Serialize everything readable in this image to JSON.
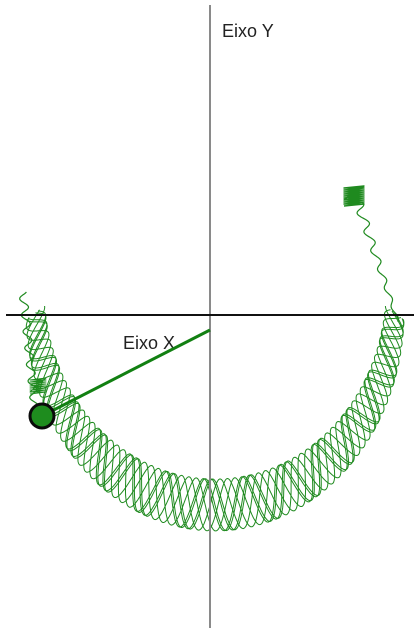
{
  "labels": {
    "y_axis": "Eixo Y",
    "x_axis": "Eixo X"
  },
  "colors": {
    "axis_vertical": "#8a8a8a",
    "axis_horizontal": "#111111",
    "trace": "#1f8a1f",
    "rod": "#128012",
    "bob_fill": "#1e8c1e",
    "bob_stroke": "#0a0a0a",
    "background": "#ffffff"
  }
}
